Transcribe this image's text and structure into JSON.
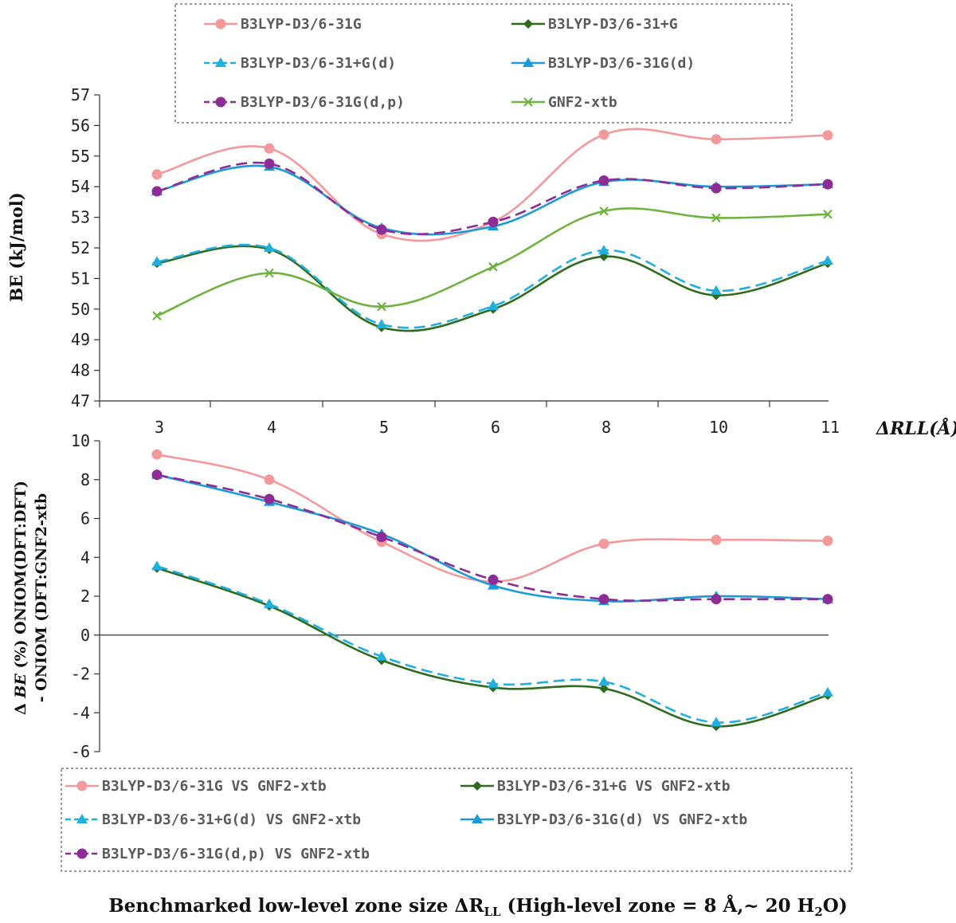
{
  "colors": {
    "pink": "#F4999B",
    "darkgreen": "#2E6B1F",
    "lightblue": "#1FB0E0",
    "blue": "#1A9AD6",
    "purple": "#8E2C97",
    "lightgreen": "#6DB33F"
  },
  "chart_data": [
    {
      "type": "line",
      "title": "",
      "ylabel": "BE (kJ/mol)",
      "xlabel": "ΔRLL(Å)",
      "categories": [
        "3",
        "4",
        "5",
        "6",
        "8",
        "10",
        "11"
      ],
      "ylim": [
        47,
        57
      ],
      "yticks": [
        47,
        48,
        49,
        50,
        51,
        52,
        53,
        54,
        55,
        56,
        57
      ],
      "legend_position": "top",
      "series": [
        {
          "name": "B3LYP-D3/6-31G",
          "color": "#F4999B",
          "marker": "circle",
          "dash": false,
          "values": [
            54.4,
            55.25,
            52.45,
            52.85,
            55.7,
            55.55,
            55.68
          ]
        },
        {
          "name": "B3LYP-D3/6-31+G",
          "color": "#2E6B1F",
          "marker": "diamond",
          "dash": false,
          "values": [
            51.5,
            51.95,
            49.4,
            50.0,
            51.72,
            50.45,
            51.5
          ]
        },
        {
          "name": "B3LYP-D3/6-31+G(d)",
          "color": "#1FB0E0",
          "marker": "triangle",
          "dash": true,
          "values": [
            51.55,
            52.0,
            49.5,
            50.1,
            51.92,
            50.6,
            51.58
          ]
        },
        {
          "name": "B3LYP-D3/6-31G(d)",
          "color": "#1A9AD6",
          "marker": "triangle",
          "dash": false,
          "values": [
            53.85,
            54.65,
            52.65,
            52.7,
            54.15,
            54.0,
            54.08
          ]
        },
        {
          "name": "B3LYP-D3/6-31G(d,p)",
          "color": "#8E2C97",
          "marker": "circle",
          "dash": true,
          "values": [
            53.85,
            54.75,
            52.6,
            52.85,
            54.2,
            53.95,
            54.08
          ]
        },
        {
          "name": "GNF2-xtb",
          "color": "#6DB33F",
          "marker": "x",
          "dash": false,
          "values": [
            49.78,
            51.18,
            50.08,
            51.38,
            53.2,
            52.98,
            53.1
          ]
        }
      ]
    },
    {
      "type": "line",
      "title": "",
      "ylabel_parts": [
        "Δ ",
        "BE",
        " (%) ONIOM(DFT:DFT)",
        "- ONIOM (DFT:GNF2-xtb"
      ],
      "xlabel": "Benchmarked low-level zone size ΔRLL (High-level zone = 8 Å,~ 20 H2O)",
      "xlabel_parts": [
        "Benchmarked low-level zone size ΔR",
        "LL",
        " (High-level zone = 8 Å,~ 20 H",
        "2",
        "O)"
      ],
      "categories": [
        "3",
        "4",
        "5",
        "6",
        "8",
        "10",
        "11"
      ],
      "ylim": [
        -6,
        10
      ],
      "yticks": [
        -6,
        -4,
        -2,
        0,
        2,
        4,
        6,
        8,
        10
      ],
      "legend_position": "bottom",
      "series": [
        {
          "name": "B3LYP-D3/6-31G VS GNF2-xtb",
          "color": "#F4999B",
          "marker": "circle",
          "dash": false,
          "values": [
            9.3,
            8.0,
            4.8,
            2.75,
            4.7,
            4.9,
            4.85
          ]
        },
        {
          "name": "B3LYP-D3/6-31+G VS GNF2-xtb",
          "color": "#2E6B1F",
          "marker": "diamond",
          "dash": false,
          "values": [
            3.45,
            1.5,
            -1.3,
            -2.7,
            -2.75,
            -4.7,
            -3.1
          ]
        },
        {
          "name": "B3LYP-D3/6-31+G(d) VS GNF2-xtb",
          "color": "#1FB0E0",
          "marker": "triangle",
          "dash": true,
          "values": [
            3.55,
            1.6,
            -1.1,
            -2.5,
            -2.4,
            -4.5,
            -2.95
          ]
        },
        {
          "name": "B3LYP-D3/6-31G(d) VS GNF2-xtb",
          "color": "#1A9AD6",
          "marker": "triangle",
          "dash": false,
          "values": [
            8.25,
            6.85,
            5.2,
            2.55,
            1.75,
            2.0,
            1.85
          ]
        },
        {
          "name": "B3LYP-D3/6-31G(d,p) VS GNF2-xtb",
          "color": "#8E2C97",
          "marker": "circle",
          "dash": true,
          "values": [
            8.25,
            7.0,
            5.05,
            2.85,
            1.85,
            1.85,
            1.85
          ]
        }
      ]
    }
  ]
}
